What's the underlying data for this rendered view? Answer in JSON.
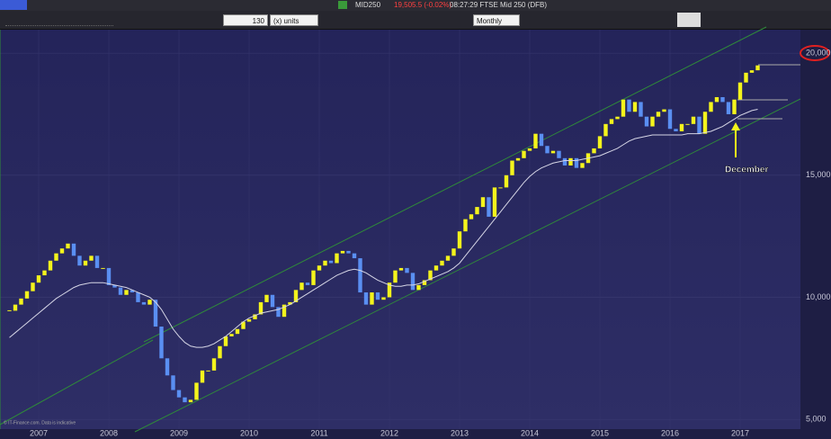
{
  "toolbar": {
    "symbol": "MID250",
    "price": "19,505.5 (-0.02%)",
    "time_name": "08:27:29 FTSE Mid 250 (DFB)",
    "count": "130",
    "units": "(x) units",
    "period": "Monthly"
  },
  "chart_data": {
    "type": "candlestick",
    "categories": [
      null,
      null,
      null,
      null,
      null,
      "2007",
      null,
      null,
      null,
      null,
      null,
      null,
      null,
      null,
      null,
      null,
      null,
      "2008",
      null,
      null,
      null,
      null,
      null,
      null,
      null,
      null,
      null,
      null,
      null,
      "2009",
      null,
      null,
      null,
      null,
      null,
      null,
      null,
      null,
      null,
      null,
      null,
      "2010",
      null,
      null,
      null,
      null,
      null,
      null,
      null,
      null,
      null,
      null,
      null,
      "2011",
      null,
      null,
      null,
      null,
      null,
      null,
      null,
      null,
      null,
      null,
      null,
      "2012",
      null,
      null,
      null,
      null,
      null,
      null,
      null,
      null,
      null,
      null,
      null,
      "2013",
      null,
      null,
      null,
      null,
      null,
      null,
      null,
      null,
      null,
      null,
      null,
      "2014",
      null,
      null,
      null,
      null,
      null,
      null,
      null,
      null,
      null,
      null,
      null,
      "2015",
      null,
      null,
      null,
      null,
      null,
      null,
      null,
      null,
      null,
      null,
      null,
      "2016",
      null,
      null,
      null,
      null,
      null,
      null,
      null,
      null,
      null,
      null,
      null,
      "2017",
      null,
      null,
      null
    ],
    "series": [
      {
        "up_color": "#f4f41c",
        "down_color": "#5a8ff2",
        "values": [
          9450,
          9700,
          9950,
          10250,
          10600,
          10900,
          11100,
          11500,
          11800,
          12000,
          12200,
          11700,
          11300,
          11500,
          11700,
          11200,
          11200,
          10500,
          10400,
          10100,
          10300,
          10200,
          9800,
          9700,
          9900,
          8800,
          7500,
          6800,
          6200,
          5900,
          5700,
          5800,
          6500,
          7000,
          7000,
          7500,
          8000,
          8400,
          8500,
          8700,
          9000,
          9100,
          9300,
          9800,
          10100,
          9600,
          9200,
          9700,
          9800,
          10300,
          10600,
          10500,
          11100,
          11300,
          11500,
          11400,
          11800,
          11900,
          11800,
          11600,
          10200,
          9700,
          10200,
          9900,
          10000,
          10600,
          11100,
          11200,
          11000,
          10300,
          10500,
          10700,
          11100,
          11300,
          11500,
          11700,
          12000,
          12700,
          13200,
          13400,
          13700,
          14100,
          13300,
          14500,
          14500,
          15000,
          15600,
          15700,
          16000,
          16100,
          16700,
          16200,
          15900,
          16000,
          15700,
          15400,
          15700,
          15300,
          15500,
          15900,
          16100,
          16600,
          17100,
          17300,
          17400,
          18100,
          17600,
          18000,
          17400,
          17000,
          17400,
          17600,
          17700,
          16900,
          16800,
          17100,
          17100,
          17400,
          16700,
          17600,
          18000,
          18200,
          18000,
          17500,
          18100,
          18800,
          19200,
          19300,
          19500
        ]
      },
      {
        "color": "#d6d6e6",
        "values": [
          8350,
          8550,
          8750,
          8950,
          9150,
          9350,
          9550,
          9750,
          9950,
          10100,
          10250,
          10400,
          10500,
          10550,
          10600,
          10600,
          10600,
          10550,
          10500,
          10450,
          10400,
          10300,
          10200,
          10100,
          10000,
          9800,
          9500,
          9100,
          8700,
          8400,
          8150,
          8000,
          7950,
          7950,
          8000,
          8100,
          8250,
          8400,
          8600,
          8800,
          9000,
          9150,
          9250,
          9350,
          9400,
          9450,
          9500,
          9600,
          9700,
          9850,
          10000,
          10150,
          10300,
          10450,
          10600,
          10750,
          10900,
          11000,
          11100,
          11150,
          11100,
          11000,
          10850,
          10700,
          10600,
          10500,
          10450,
          10450,
          10500,
          10500,
          10550,
          10650,
          10750,
          10850,
          10950,
          11050,
          11200,
          11400,
          11700,
          12000,
          12300,
          12600,
          12900,
          13200,
          13500,
          13800,
          14100,
          14400,
          14700,
          14950,
          15150,
          15300,
          15400,
          15500,
          15550,
          15600,
          15600,
          15600,
          15650,
          15700,
          15750,
          15800,
          15900,
          16000,
          16100,
          16250,
          16400,
          16500,
          16550,
          16600,
          16650,
          16650,
          16650,
          16650,
          16650,
          16650,
          16700,
          16700,
          16700,
          16750,
          16800,
          16900,
          17000,
          17150,
          17300,
          17450,
          17550,
          17650,
          17700
        ]
      }
    ],
    "ylim": [
      4600,
      21000
    ],
    "yticks": [
      {
        "value": 5000,
        "label": "5,000"
      },
      {
        "value": 10000,
        "label": "10,000"
      },
      {
        "value": 15000,
        "label": "15,000"
      },
      {
        "value": 20000,
        "label": "20,000"
      }
    ],
    "grid": true,
    "annotation": "December",
    "credit": "© IT-Finance.com. Data is indicative"
  }
}
